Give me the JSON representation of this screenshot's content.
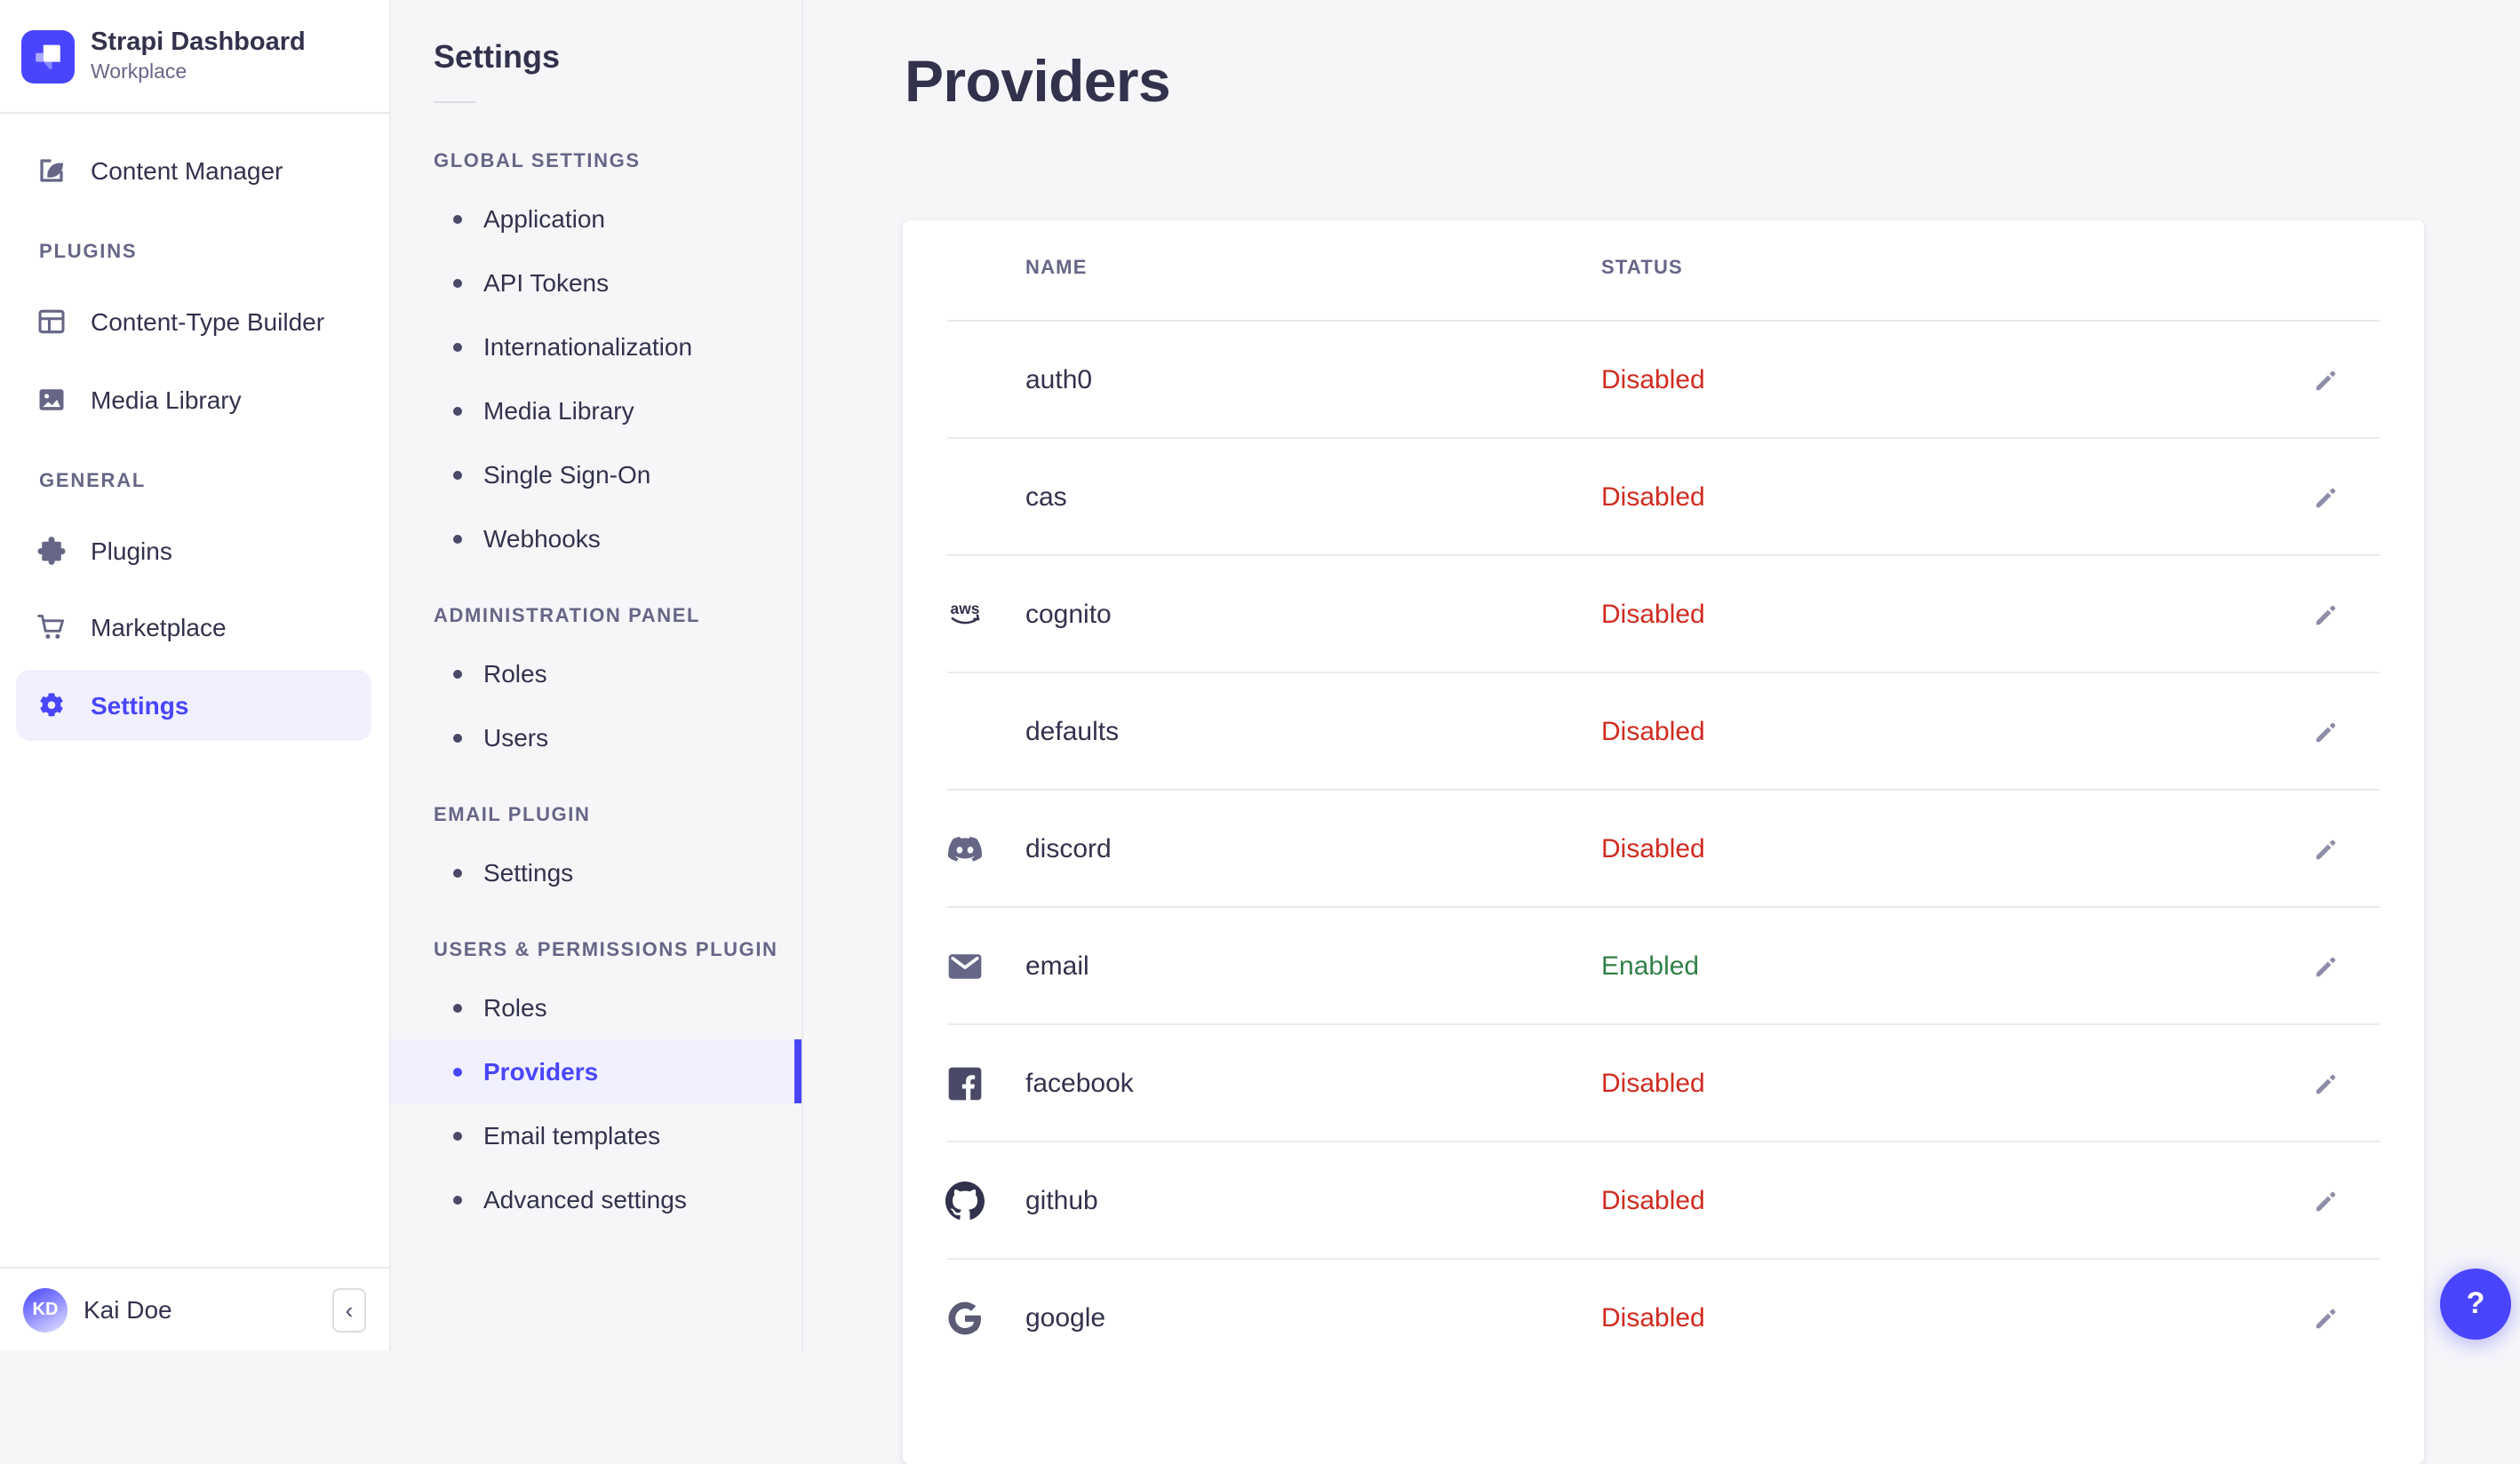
{
  "colors": {
    "accent": "#4945ff",
    "accent_bg": "#f0f0ff",
    "text": "#32324d",
    "muted": "#666687",
    "danger": "#d02b20",
    "success": "#328048",
    "border": "#eaeaef"
  },
  "brand": {
    "title": "Strapi Dashboard",
    "subtitle": "Workplace"
  },
  "sidebar": {
    "sections": [
      {
        "label": null,
        "items": [
          {
            "id": "content-manager",
            "label": "Content Manager",
            "icon": "content-manager-icon",
            "active": false
          }
        ]
      },
      {
        "label": "PLUGINS",
        "items": [
          {
            "id": "content-type-builder",
            "label": "Content-Type Builder",
            "icon": "content-type-builder-icon",
            "active": false
          },
          {
            "id": "media-library",
            "label": "Media Library",
            "icon": "media-library-icon",
            "active": false
          }
        ]
      },
      {
        "label": "GENERAL",
        "items": [
          {
            "id": "plugins",
            "label": "Plugins",
            "icon": "plugins-icon",
            "active": false
          },
          {
            "id": "marketplace",
            "label": "Marketplace",
            "icon": "marketplace-icon",
            "active": false
          },
          {
            "id": "settings",
            "label": "Settings",
            "icon": "settings-icon",
            "active": true
          }
        ]
      }
    ],
    "user": {
      "name": "Kai Doe",
      "initials": "KD"
    },
    "collapse_icon": "‹"
  },
  "subnav": {
    "title": "Settings",
    "sections": [
      {
        "label": "GLOBAL SETTINGS",
        "items": [
          {
            "id": "application",
            "label": "Application",
            "active": false
          },
          {
            "id": "api-tokens",
            "label": "API Tokens",
            "active": false
          },
          {
            "id": "internationalization",
            "label": "Internationalization",
            "active": false
          },
          {
            "id": "media-library",
            "label": "Media Library",
            "active": false
          },
          {
            "id": "single-sign-on",
            "label": "Single Sign-On",
            "active": false
          },
          {
            "id": "webhooks",
            "label": "Webhooks",
            "active": false
          }
        ]
      },
      {
        "label": "ADMINISTRATION PANEL",
        "items": [
          {
            "id": "admin-roles",
            "label": "Roles",
            "active": false
          },
          {
            "id": "admin-users",
            "label": "Users",
            "active": false
          }
        ]
      },
      {
        "label": "EMAIL PLUGIN",
        "items": [
          {
            "id": "email-settings",
            "label": "Settings",
            "active": false
          }
        ]
      },
      {
        "label": "USERS & PERMISSIONS PLUGIN",
        "items": [
          {
            "id": "up-roles",
            "label": "Roles",
            "active": false
          },
          {
            "id": "up-providers",
            "label": "Providers",
            "active": true
          },
          {
            "id": "up-email-templates",
            "label": "Email templates",
            "active": false
          },
          {
            "id": "up-advanced-settings",
            "label": "Advanced settings",
            "active": false
          }
        ]
      }
    ]
  },
  "main": {
    "title": "Providers",
    "table": {
      "columns": [
        "NAME",
        "STATUS"
      ],
      "rows": [
        {
          "icon": null,
          "name": "auth0",
          "status": "Disabled"
        },
        {
          "icon": null,
          "name": "cas",
          "status": "Disabled"
        },
        {
          "icon": "aws-icon",
          "name": "cognito",
          "status": "Disabled"
        },
        {
          "icon": null,
          "name": "defaults",
          "status": "Disabled"
        },
        {
          "icon": "discord-icon",
          "name": "discord",
          "status": "Disabled"
        },
        {
          "icon": "email-icon",
          "name": "email",
          "status": "Enabled"
        },
        {
          "icon": "facebook-icon",
          "name": "facebook",
          "status": "Disabled"
        },
        {
          "icon": "github-icon",
          "name": "github",
          "status": "Disabled"
        },
        {
          "icon": "google-icon",
          "name": "google",
          "status": "Disabled"
        }
      ]
    }
  },
  "help": {
    "label": "?"
  }
}
